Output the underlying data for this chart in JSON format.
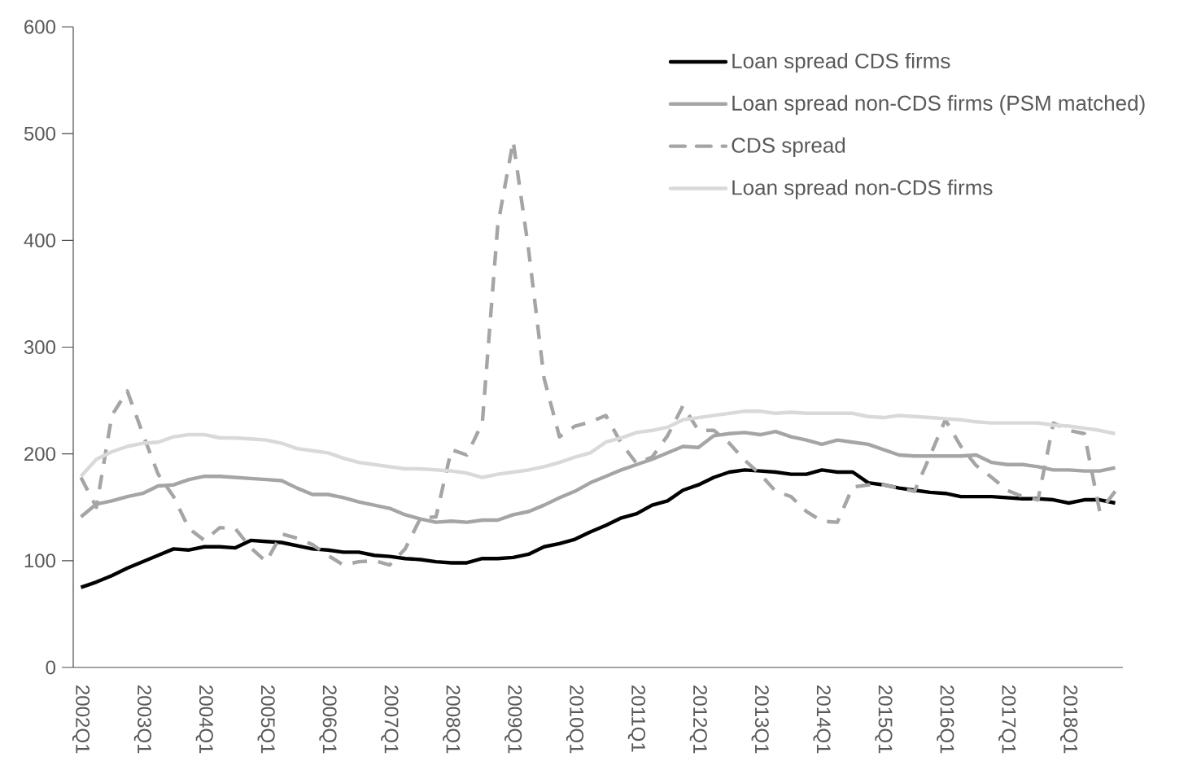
{
  "chart_data": {
    "type": "line",
    "categories": [
      "2002Q1",
      null,
      null,
      null,
      "2003Q1",
      null,
      null,
      null,
      "2004Q1",
      null,
      null,
      null,
      "2005Q1",
      null,
      null,
      null,
      "2006Q1",
      null,
      null,
      null,
      "2007Q1",
      null,
      null,
      null,
      "2008Q1",
      null,
      null,
      null,
      "2009Q1",
      null,
      null,
      null,
      "2010Q1",
      null,
      null,
      null,
      "2011Q1",
      null,
      null,
      null,
      "2012Q1",
      null,
      null,
      null,
      "2013Q1",
      null,
      null,
      null,
      "2014Q1",
      null,
      null,
      null,
      "2015Q1",
      null,
      null,
      null,
      "2016Q1",
      null,
      null,
      null,
      "2017Q1",
      null,
      null,
      null,
      "2018Q1",
      null,
      null,
      null
    ],
    "ylim": [
      0,
      600
    ],
    "yticks": [
      0,
      100,
      200,
      300,
      400,
      500,
      600
    ],
    "grid": false,
    "legend": "top right",
    "marker": "none",
    "series": [
      {
        "name": "Loan spread CDS firms",
        "color": "#000000",
        "line_style": "solid",
        "values": [
          75,
          80,
          86,
          93,
          99,
          105,
          111,
          110,
          113,
          113,
          112,
          119,
          118,
          117,
          114,
          111,
          110,
          108,
          108,
          105,
          104,
          102,
          101,
          99,
          98,
          98,
          102,
          102,
          103,
          106,
          113,
          116,
          120,
          127,
          133,
          140,
          144,
          152,
          156,
          166,
          171,
          178,
          183,
          185,
          184,
          183,
          181,
          181,
          185,
          183,
          183,
          173,
          171,
          168,
          166,
          164,
          163,
          160,
          160,
          160,
          159,
          158,
          158,
          157,
          154,
          157,
          157,
          154
        ]
      },
      {
        "name": "Loan spread non-CDS firms (PSM matched)",
        "color": "#a5a5a5",
        "line_style": "solid",
        "values": [
          141,
          153,
          156,
          160,
          163,
          170,
          171,
          176,
          179,
          179,
          178,
          177,
          176,
          175,
          168,
          162,
          162,
          159,
          155,
          152,
          149,
          143,
          139,
          136,
          137,
          136,
          138,
          138,
          143,
          146,
          152,
          159,
          165,
          173,
          179,
          185,
          190,
          195,
          201,
          207,
          206,
          217,
          219,
          220,
          218,
          221,
          216,
          213,
          209,
          213,
          211,
          209,
          204,
          199,
          198,
          198,
          198,
          198,
          199,
          192,
          190,
          190,
          188,
          185,
          185,
          184,
          184,
          187
        ]
      },
      {
        "name": "CDS spread",
        "color": "#a5a5a5",
        "line_style": "dashed",
        "values": [
          178,
          150,
          236,
          259,
          219,
          181,
          160,
          130,
          119,
          131,
          130,
          112,
          99,
          125,
          121,
          115,
          105,
          96,
          99,
          100,
          96,
          111,
          140,
          141,
          204,
          199,
          229,
          414,
          493,
          391,
          271,
          216,
          226,
          230,
          236,
          210,
          191,
          197,
          217,
          245,
          222,
          222,
          210,
          194,
          181,
          165,
          160,
          146,
          137,
          136,
          169,
          171,
          171,
          168,
          165,
          198,
          232,
          207,
          189,
          178,
          166,
          160,
          157,
          229,
          222,
          219,
          146,
          165
        ]
      },
      {
        "name": "Loan spread non-CDS firms",
        "color": "#d9d9d9",
        "line_style": "solid",
        "values": [
          179,
          195,
          202,
          207,
          210,
          211,
          216,
          218,
          218,
          215,
          215,
          214,
          213,
          210,
          205,
          203,
          201,
          196,
          192,
          190,
          188,
          186,
          186,
          185,
          184,
          182,
          178,
          181,
          183,
          185,
          188,
          192,
          197,
          201,
          211,
          215,
          220,
          222,
          225,
          232,
          234,
          236,
          238,
          240,
          240,
          238,
          239,
          238,
          238,
          238,
          238,
          235,
          234,
          236,
          235,
          234,
          233,
          232,
          230,
          229,
          229,
          229,
          229,
          227,
          226,
          224,
          222,
          219
        ]
      }
    ]
  }
}
